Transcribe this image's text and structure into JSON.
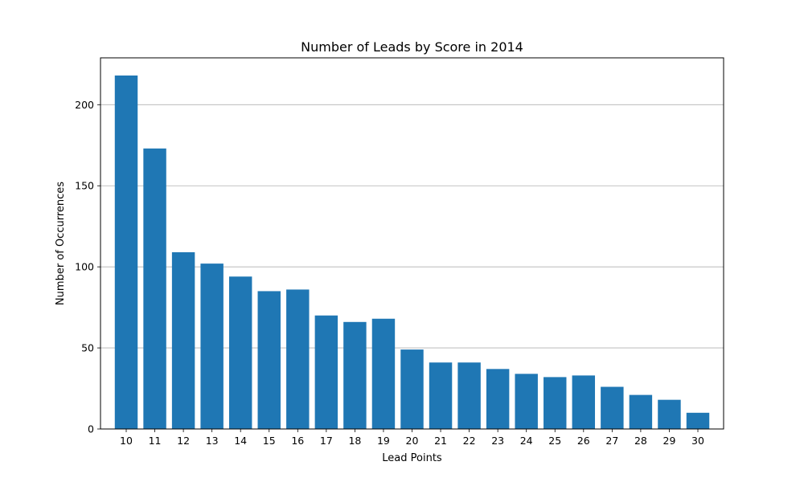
{
  "chart_data": {
    "type": "bar",
    "title": "Number of Leads by Score in 2014",
    "xlabel": "Lead Points",
    "ylabel": "Number of Occurrences",
    "categories": [
      "10",
      "11",
      "12",
      "13",
      "14",
      "15",
      "16",
      "17",
      "18",
      "19",
      "20",
      "21",
      "22",
      "23",
      "24",
      "25",
      "26",
      "27",
      "28",
      "29",
      "30"
    ],
    "values": [
      218,
      173,
      109,
      102,
      94,
      85,
      86,
      70,
      66,
      68,
      49,
      41,
      41,
      37,
      34,
      32,
      33,
      26,
      21,
      18,
      10
    ],
    "ylim": [
      0,
      228.9
    ],
    "yticks": [
      0,
      50,
      100,
      150,
      200
    ],
    "grid": "y",
    "bar_color": "#1f77b4"
  }
}
